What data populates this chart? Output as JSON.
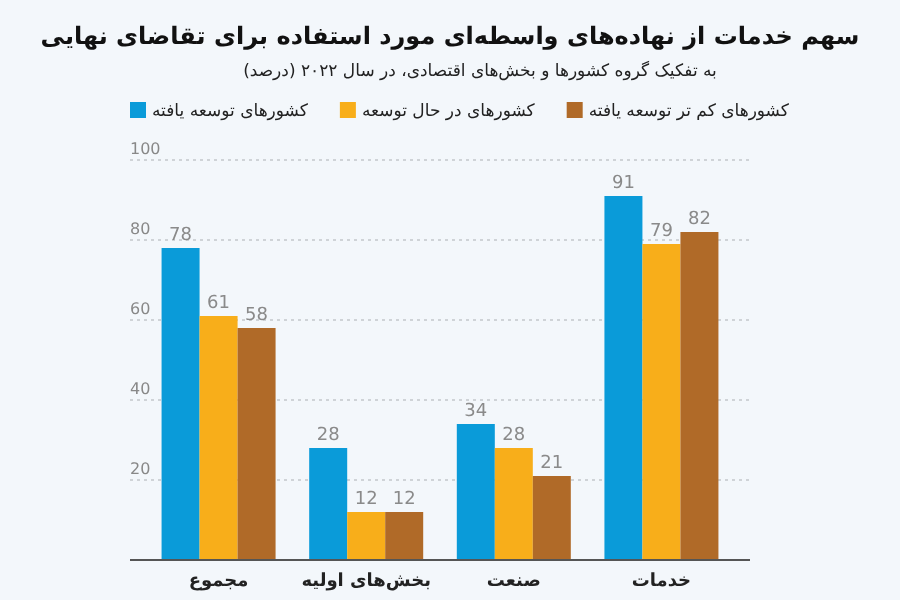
{
  "chart_data": {
    "type": "bar",
    "title": "سهم خدمات از نهاده‌های واسطه‌ای مورد استفاده برای تقاضای نهایی",
    "subtitle": "به تفکیک گروه کشورها و بخش‌های اقتصادی، در سال ۲۰۲۲ (درصد)",
    "categories": [
      "مجموع",
      "بخش‌های اولیه",
      "صنعت",
      "خدمات"
    ],
    "series": [
      {
        "name": "کشورهای توسعه یافته",
        "color": "#0a9bd9",
        "values": [
          78,
          28,
          34,
          91
        ]
      },
      {
        "name": "کشورهای در حال توسعه",
        "color": "#f8ae1a",
        "values": [
          61,
          12,
          28,
          79
        ]
      },
      {
        "name": "کشورهای کم تر توسعه یافته",
        "color": "#b06a28",
        "values": [
          58,
          12,
          21,
          82
        ]
      }
    ],
    "ylim": [
      0,
      100
    ],
    "yticks": [
      20,
      40,
      60,
      80,
      100
    ],
    "grid": "y",
    "legend": "top",
    "data_labels": true
  }
}
